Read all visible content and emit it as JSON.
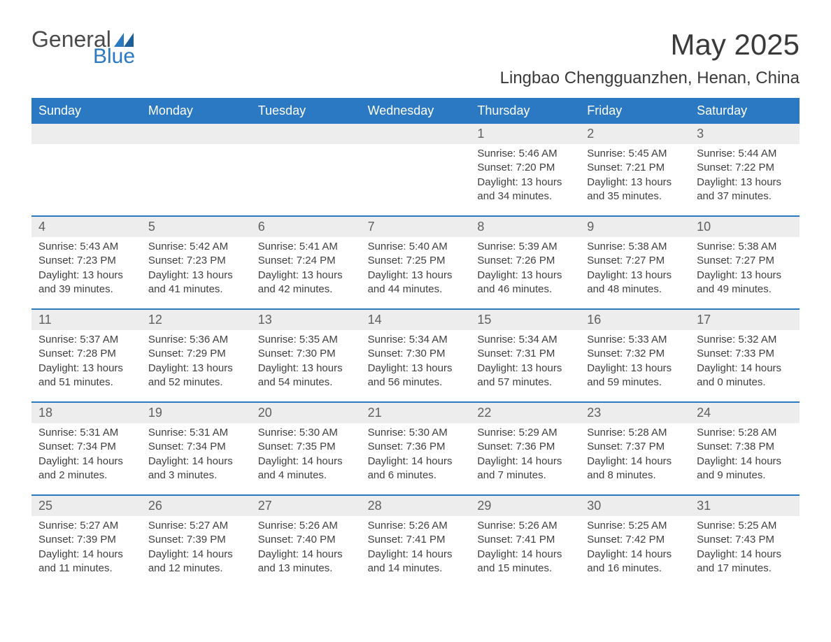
{
  "logo": {
    "word1": "General",
    "word2": "Blue"
  },
  "title": "May 2025",
  "location": "Lingbao Chengguanzhen, Henan, China",
  "colors": {
    "header_bg": "#2b79c2",
    "header_text": "#ffffff",
    "date_row_bg": "#ededed",
    "week_border": "#2b79c2",
    "body_text": "#404040",
    "logo_gray": "#4a4a4a",
    "logo_blue": "#2b79c2",
    "page_bg": "#ffffff"
  },
  "typography": {
    "title_fontsize": 42,
    "location_fontsize": 24,
    "dayheader_fontsize": 18,
    "datenum_fontsize": 18,
    "cell_fontsize": 15
  },
  "day_labels": [
    "Sunday",
    "Monday",
    "Tuesday",
    "Wednesday",
    "Thursday",
    "Friday",
    "Saturday"
  ],
  "weeks": [
    {
      "dates": [
        "",
        "",
        "",
        "",
        "1",
        "2",
        "3"
      ],
      "cells": [
        null,
        null,
        null,
        null,
        {
          "sunrise": "Sunrise: 5:46 AM",
          "sunset": "Sunset: 7:20 PM",
          "daylight1": "Daylight: 13 hours",
          "daylight2": "and 34 minutes."
        },
        {
          "sunrise": "Sunrise: 5:45 AM",
          "sunset": "Sunset: 7:21 PM",
          "daylight1": "Daylight: 13 hours",
          "daylight2": "and 35 minutes."
        },
        {
          "sunrise": "Sunrise: 5:44 AM",
          "sunset": "Sunset: 7:22 PM",
          "daylight1": "Daylight: 13 hours",
          "daylight2": "and 37 minutes."
        }
      ]
    },
    {
      "dates": [
        "4",
        "5",
        "6",
        "7",
        "8",
        "9",
        "10"
      ],
      "cells": [
        {
          "sunrise": "Sunrise: 5:43 AM",
          "sunset": "Sunset: 7:23 PM",
          "daylight1": "Daylight: 13 hours",
          "daylight2": "and 39 minutes."
        },
        {
          "sunrise": "Sunrise: 5:42 AM",
          "sunset": "Sunset: 7:23 PM",
          "daylight1": "Daylight: 13 hours",
          "daylight2": "and 41 minutes."
        },
        {
          "sunrise": "Sunrise: 5:41 AM",
          "sunset": "Sunset: 7:24 PM",
          "daylight1": "Daylight: 13 hours",
          "daylight2": "and 42 minutes."
        },
        {
          "sunrise": "Sunrise: 5:40 AM",
          "sunset": "Sunset: 7:25 PM",
          "daylight1": "Daylight: 13 hours",
          "daylight2": "and 44 minutes."
        },
        {
          "sunrise": "Sunrise: 5:39 AM",
          "sunset": "Sunset: 7:26 PM",
          "daylight1": "Daylight: 13 hours",
          "daylight2": "and 46 minutes."
        },
        {
          "sunrise": "Sunrise: 5:38 AM",
          "sunset": "Sunset: 7:27 PM",
          "daylight1": "Daylight: 13 hours",
          "daylight2": "and 48 minutes."
        },
        {
          "sunrise": "Sunrise: 5:38 AM",
          "sunset": "Sunset: 7:27 PM",
          "daylight1": "Daylight: 13 hours",
          "daylight2": "and 49 minutes."
        }
      ]
    },
    {
      "dates": [
        "11",
        "12",
        "13",
        "14",
        "15",
        "16",
        "17"
      ],
      "cells": [
        {
          "sunrise": "Sunrise: 5:37 AM",
          "sunset": "Sunset: 7:28 PM",
          "daylight1": "Daylight: 13 hours",
          "daylight2": "and 51 minutes."
        },
        {
          "sunrise": "Sunrise: 5:36 AM",
          "sunset": "Sunset: 7:29 PM",
          "daylight1": "Daylight: 13 hours",
          "daylight2": "and 52 minutes."
        },
        {
          "sunrise": "Sunrise: 5:35 AM",
          "sunset": "Sunset: 7:30 PM",
          "daylight1": "Daylight: 13 hours",
          "daylight2": "and 54 minutes."
        },
        {
          "sunrise": "Sunrise: 5:34 AM",
          "sunset": "Sunset: 7:30 PM",
          "daylight1": "Daylight: 13 hours",
          "daylight2": "and 56 minutes."
        },
        {
          "sunrise": "Sunrise: 5:34 AM",
          "sunset": "Sunset: 7:31 PM",
          "daylight1": "Daylight: 13 hours",
          "daylight2": "and 57 minutes."
        },
        {
          "sunrise": "Sunrise: 5:33 AM",
          "sunset": "Sunset: 7:32 PM",
          "daylight1": "Daylight: 13 hours",
          "daylight2": "and 59 minutes."
        },
        {
          "sunrise": "Sunrise: 5:32 AM",
          "sunset": "Sunset: 7:33 PM",
          "daylight1": "Daylight: 14 hours",
          "daylight2": "and 0 minutes."
        }
      ]
    },
    {
      "dates": [
        "18",
        "19",
        "20",
        "21",
        "22",
        "23",
        "24"
      ],
      "cells": [
        {
          "sunrise": "Sunrise: 5:31 AM",
          "sunset": "Sunset: 7:34 PM",
          "daylight1": "Daylight: 14 hours",
          "daylight2": "and 2 minutes."
        },
        {
          "sunrise": "Sunrise: 5:31 AM",
          "sunset": "Sunset: 7:34 PM",
          "daylight1": "Daylight: 14 hours",
          "daylight2": "and 3 minutes."
        },
        {
          "sunrise": "Sunrise: 5:30 AM",
          "sunset": "Sunset: 7:35 PM",
          "daylight1": "Daylight: 14 hours",
          "daylight2": "and 4 minutes."
        },
        {
          "sunrise": "Sunrise: 5:30 AM",
          "sunset": "Sunset: 7:36 PM",
          "daylight1": "Daylight: 14 hours",
          "daylight2": "and 6 minutes."
        },
        {
          "sunrise": "Sunrise: 5:29 AM",
          "sunset": "Sunset: 7:36 PM",
          "daylight1": "Daylight: 14 hours",
          "daylight2": "and 7 minutes."
        },
        {
          "sunrise": "Sunrise: 5:28 AM",
          "sunset": "Sunset: 7:37 PM",
          "daylight1": "Daylight: 14 hours",
          "daylight2": "and 8 minutes."
        },
        {
          "sunrise": "Sunrise: 5:28 AM",
          "sunset": "Sunset: 7:38 PM",
          "daylight1": "Daylight: 14 hours",
          "daylight2": "and 9 minutes."
        }
      ]
    },
    {
      "dates": [
        "25",
        "26",
        "27",
        "28",
        "29",
        "30",
        "31"
      ],
      "cells": [
        {
          "sunrise": "Sunrise: 5:27 AM",
          "sunset": "Sunset: 7:39 PM",
          "daylight1": "Daylight: 14 hours",
          "daylight2": "and 11 minutes."
        },
        {
          "sunrise": "Sunrise: 5:27 AM",
          "sunset": "Sunset: 7:39 PM",
          "daylight1": "Daylight: 14 hours",
          "daylight2": "and 12 minutes."
        },
        {
          "sunrise": "Sunrise: 5:26 AM",
          "sunset": "Sunset: 7:40 PM",
          "daylight1": "Daylight: 14 hours",
          "daylight2": "and 13 minutes."
        },
        {
          "sunrise": "Sunrise: 5:26 AM",
          "sunset": "Sunset: 7:41 PM",
          "daylight1": "Daylight: 14 hours",
          "daylight2": "and 14 minutes."
        },
        {
          "sunrise": "Sunrise: 5:26 AM",
          "sunset": "Sunset: 7:41 PM",
          "daylight1": "Daylight: 14 hours",
          "daylight2": "and 15 minutes."
        },
        {
          "sunrise": "Sunrise: 5:25 AM",
          "sunset": "Sunset: 7:42 PM",
          "daylight1": "Daylight: 14 hours",
          "daylight2": "and 16 minutes."
        },
        {
          "sunrise": "Sunrise: 5:25 AM",
          "sunset": "Sunset: 7:43 PM",
          "daylight1": "Daylight: 14 hours",
          "daylight2": "and 17 minutes."
        }
      ]
    }
  ]
}
